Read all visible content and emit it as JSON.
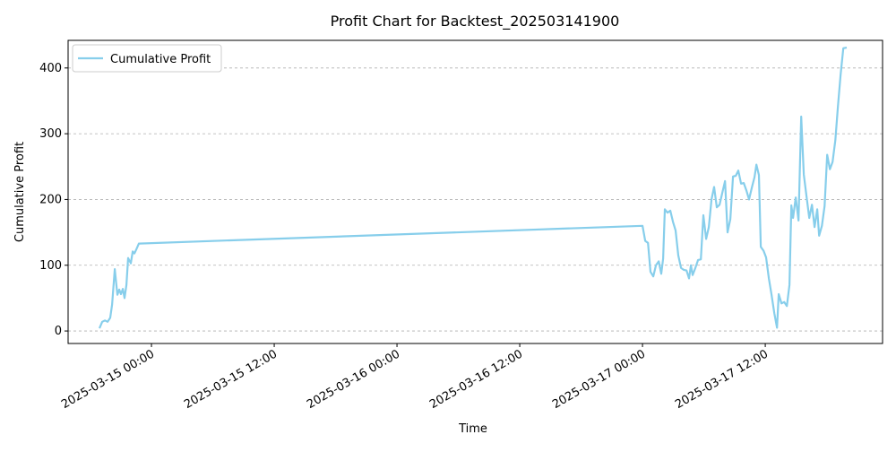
{
  "chart_data": {
    "type": "line",
    "title": "Profit Chart for Backtest_202503141900",
    "x_label": "Time",
    "y_label": "Cumulative Profit",
    "x": [
      "2025-03-14 18:55",
      "2025-03-14 19:11",
      "2025-03-14 19:27",
      "2025-03-14 19:43",
      "2025-03-14 19:58",
      "2025-03-14 20:09",
      "2025-03-14 20:25",
      "2025-03-14 20:40",
      "2025-03-14 20:51",
      "2025-03-14 21:01",
      "2025-03-14 21:12",
      "2025-03-14 21:22",
      "2025-03-14 21:33",
      "2025-03-14 21:43",
      "2025-03-14 21:59",
      "2025-03-14 22:10",
      "2025-03-14 22:20",
      "2025-03-14 22:31",
      "2025-03-14 22:46",
      "2025-03-17 00:00",
      "2025-03-17 00:16",
      "2025-03-17 00:32",
      "2025-03-17 00:47",
      "2025-03-17 01:03",
      "2025-03-17 01:19",
      "2025-03-17 01:35",
      "2025-03-17 01:50",
      "2025-03-17 02:01",
      "2025-03-17 02:11",
      "2025-03-17 02:27",
      "2025-03-17 02:43",
      "2025-03-17 02:59",
      "2025-03-17 03:14",
      "2025-03-17 03:30",
      "2025-03-17 03:46",
      "2025-03-17 04:02",
      "2025-03-17 04:18",
      "2025-03-17 04:33",
      "2025-03-17 04:44",
      "2025-03-17 04:54",
      "2025-03-17 05:10",
      "2025-03-17 05:26",
      "2025-03-17 05:42",
      "2025-03-17 05:57",
      "2025-03-17 06:13",
      "2025-03-17 06:29",
      "2025-03-17 06:45",
      "2025-03-17 07:00",
      "2025-03-17 07:16",
      "2025-03-17 07:32",
      "2025-03-17 07:48",
      "2025-03-17 08:04",
      "2025-03-17 08:19",
      "2025-03-17 08:35",
      "2025-03-17 08:51",
      "2025-03-17 09:07",
      "2025-03-17 09:22",
      "2025-03-17 09:38",
      "2025-03-17 09:54",
      "2025-03-17 10:10",
      "2025-03-17 10:25",
      "2025-03-17 10:41",
      "2025-03-17 10:57",
      "2025-03-17 11:08",
      "2025-03-17 11:23",
      "2025-03-17 11:34",
      "2025-03-17 11:50",
      "2025-03-17 12:05",
      "2025-03-17 12:21",
      "2025-03-17 12:37",
      "2025-03-17 12:53",
      "2025-03-17 13:09",
      "2025-03-17 13:19",
      "2025-03-17 13:35",
      "2025-03-17 13:51",
      "2025-03-17 14:07",
      "2025-03-17 14:22",
      "2025-03-17 14:33",
      "2025-03-17 14:43",
      "2025-03-17 14:59",
      "2025-03-17 15:15",
      "2025-03-17 15:31",
      "2025-03-17 15:46",
      "2025-03-17 16:02",
      "2025-03-17 16:18",
      "2025-03-17 16:34",
      "2025-03-17 16:49",
      "2025-03-17 17:05",
      "2025-03-17 17:16",
      "2025-03-17 17:32",
      "2025-03-17 17:48",
      "2025-03-17 18:03",
      "2025-03-17 18:19",
      "2025-03-17 18:35",
      "2025-03-17 18:51",
      "2025-03-17 19:06",
      "2025-03-17 19:22",
      "2025-03-17 19:38",
      "2025-03-17 19:58"
    ],
    "series": [
      {
        "name": "Cumulative Profit",
        "color": "#87ceeb",
        "values": [
          4,
          14,
          16,
          14,
          20,
          40,
          94,
          55,
          63,
          56,
          64,
          50,
          70,
          111,
          103,
          121,
          118,
          124,
          133,
          160,
          137,
          134,
          90,
          83,
          100,
          106,
          87,
          110,
          185,
          180,
          183,
          166,
          153,
          115,
          96,
          93,
          92,
          80,
          100,
          85,
          96,
          108,
          109,
          176,
          140,
          158,
          200,
          219,
          188,
          192,
          210,
          228,
          150,
          170,
          235,
          236,
          244,
          224,
          225,
          213,
          200,
          218,
          234,
          253,
          237,
          128,
          122,
          112,
          80,
          55,
          27,
          5,
          56,
          42,
          44,
          38,
          70,
          191,
          172,
          203,
          168,
          326,
          238,
          205,
          172,
          192,
          158,
          185,
          145,
          160,
          190,
          268,
          246,
          257,
          290,
          340,
          390,
          430,
          431
        ]
      }
    ],
    "xlim": [
      "2025-03-14 15:51",
      "2025-03-17 23:28"
    ],
    "xticks": [
      "2025-03-15 00:00",
      "2025-03-15 12:00",
      "2025-03-16 00:00",
      "2025-03-16 12:00",
      "2025-03-17 00:00",
      "2025-03-17 12:00"
    ],
    "ylim": [
      -19,
      442
    ],
    "yticks": [
      0,
      100,
      200,
      300,
      400
    ],
    "grid": true,
    "legend": "upper left"
  }
}
